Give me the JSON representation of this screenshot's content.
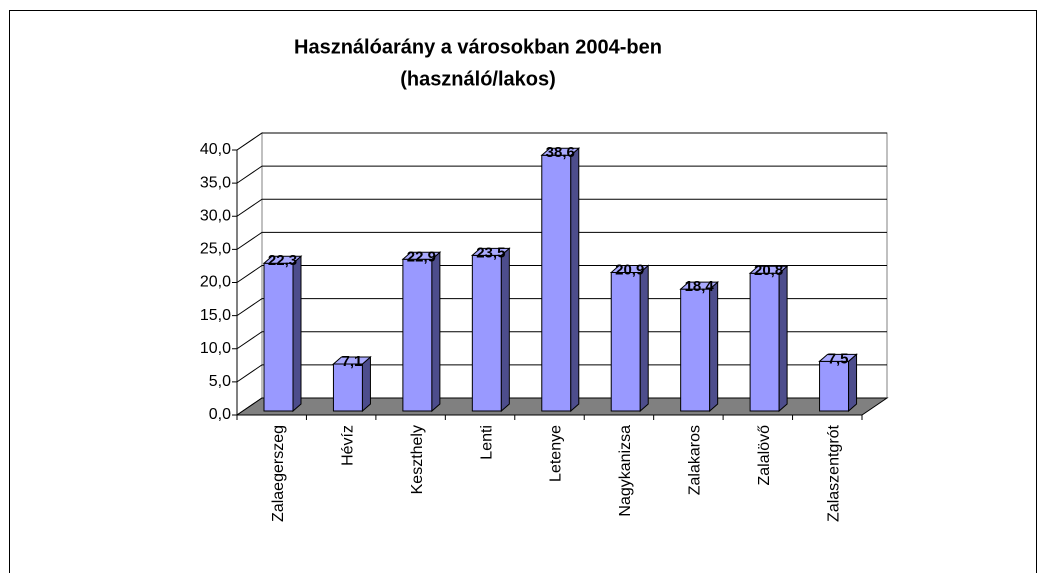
{
  "chart_data": {
    "type": "bar3d",
    "title": [
      "Használóarány a városokban 2004-ben",
      "(használó/lakos)"
    ],
    "categories": [
      "Zalaegerszeg",
      "Hévíz",
      "Keszthely",
      "Lenti",
      "Letenye",
      "Nagykanizsa",
      "Zalakaros",
      "Zalalövő",
      "Zalaszentgrót"
    ],
    "values": [
      22.3,
      7.1,
      22.9,
      23.5,
      38.6,
      20.9,
      18.4,
      20.8,
      7.5
    ],
    "value_labels": [
      "22,3",
      "7,1",
      "22,9",
      "23,5",
      "38,6",
      "20,9",
      "18,4",
      "20,8",
      "7,5"
    ],
    "color": "#9999ff",
    "ylim": [
      0,
      40
    ],
    "yticks": [
      {
        "value": 0,
        "label": "0,0"
      },
      {
        "value": 5,
        "label": "5,0"
      },
      {
        "value": 10,
        "label": "10,0"
      },
      {
        "value": 15,
        "label": "15,0"
      },
      {
        "value": 20,
        "label": "20,0"
      },
      {
        "value": 25,
        "label": "25,0"
      },
      {
        "value": 30,
        "label": "30,0"
      },
      {
        "value": 35,
        "label": "35,0"
      },
      {
        "value": 40,
        "label": "40,0"
      }
    ],
    "grid": true
  }
}
